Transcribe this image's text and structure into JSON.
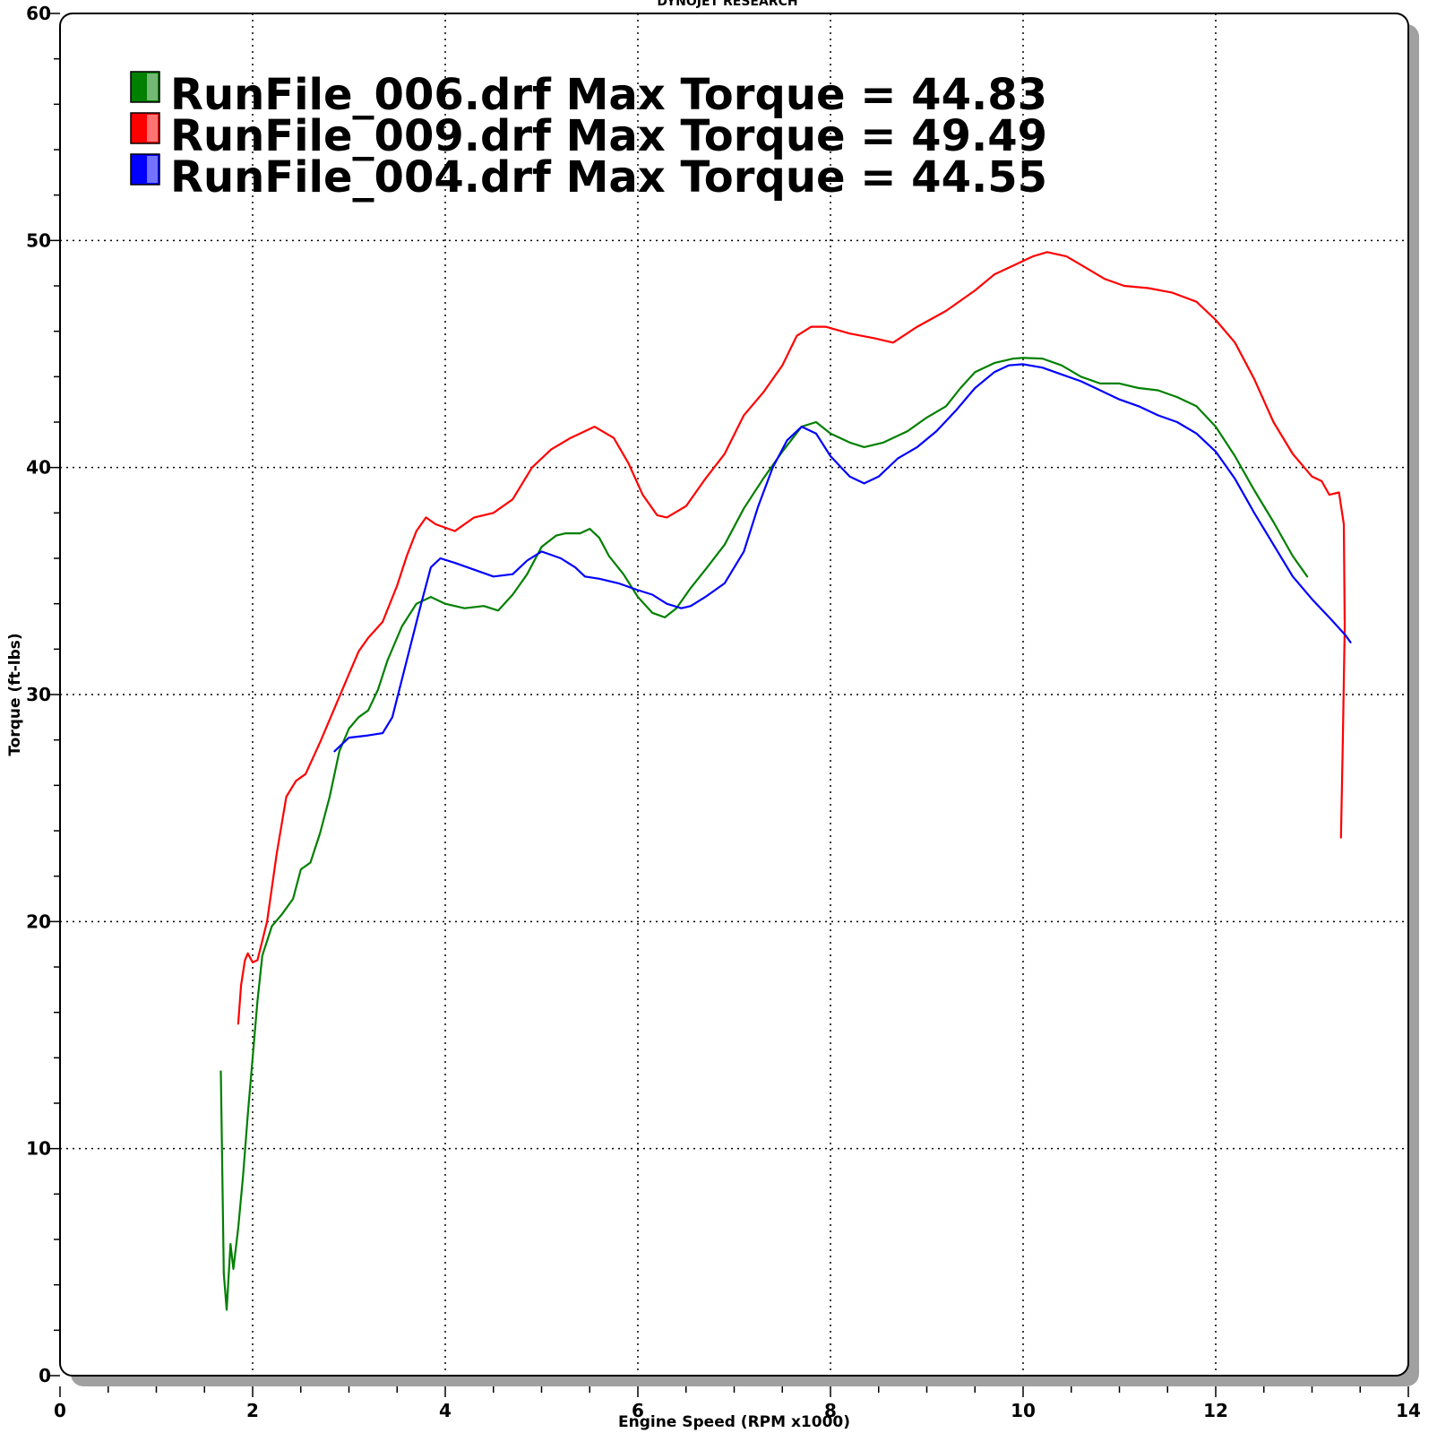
{
  "header": {
    "text": "DYNOJET RESEARCH"
  },
  "chart_data": {
    "type": "line",
    "title": "",
    "xlabel": "Engine Speed (RPM x1000)",
    "ylabel": "Torque (ft-lbs)",
    "xlim": [
      0,
      14
    ],
    "ylim": [
      0,
      60
    ],
    "x_ticks": [
      "0",
      "2",
      "4",
      "6",
      "8",
      "10",
      "12",
      "14"
    ],
    "y_ticks": [
      "0",
      "10",
      "20",
      "30",
      "40",
      "50",
      "60"
    ],
    "grid": true,
    "legend_position": "top-left",
    "series": [
      {
        "name": "RunFile_006.drf Max Torque = 44.83",
        "color": "#008000",
        "points": [
          [
            1.67,
            13.4
          ],
          [
            1.7,
            4.5
          ],
          [
            1.73,
            2.9
          ],
          [
            1.77,
            5.8
          ],
          [
            1.8,
            4.7
          ],
          [
            1.85,
            6.5
          ],
          [
            1.9,
            8.8
          ],
          [
            1.95,
            11.5
          ],
          [
            2.0,
            14.0
          ],
          [
            2.05,
            16.5
          ],
          [
            2.1,
            18.5
          ],
          [
            2.2,
            19.8
          ],
          [
            2.3,
            20.3
          ],
          [
            2.42,
            21.0
          ],
          [
            2.5,
            22.3
          ],
          [
            2.6,
            22.6
          ],
          [
            2.7,
            23.9
          ],
          [
            2.8,
            25.5
          ],
          [
            2.9,
            27.5
          ],
          [
            3.0,
            28.5
          ],
          [
            3.1,
            29.0
          ],
          [
            3.2,
            29.3
          ],
          [
            3.3,
            30.2
          ],
          [
            3.4,
            31.5
          ],
          [
            3.55,
            33.0
          ],
          [
            3.7,
            34.0
          ],
          [
            3.85,
            34.3
          ],
          [
            4.0,
            34.0
          ],
          [
            4.2,
            33.8
          ],
          [
            4.4,
            33.9
          ],
          [
            4.55,
            33.7
          ],
          [
            4.7,
            34.4
          ],
          [
            4.85,
            35.3
          ],
          [
            5.0,
            36.5
          ],
          [
            5.15,
            37.0
          ],
          [
            5.25,
            37.1
          ],
          [
            5.4,
            37.1
          ],
          [
            5.5,
            37.3
          ],
          [
            5.6,
            36.9
          ],
          [
            5.7,
            36.1
          ],
          [
            5.85,
            35.3
          ],
          [
            6.0,
            34.3
          ],
          [
            6.15,
            33.6
          ],
          [
            6.28,
            33.4
          ],
          [
            6.4,
            33.8
          ],
          [
            6.55,
            34.7
          ],
          [
            6.7,
            35.5
          ],
          [
            6.9,
            36.6
          ],
          [
            7.1,
            38.2
          ],
          [
            7.3,
            39.5
          ],
          [
            7.5,
            40.7
          ],
          [
            7.7,
            41.8
          ],
          [
            7.85,
            42.0
          ],
          [
            8.0,
            41.5
          ],
          [
            8.2,
            41.1
          ],
          [
            8.35,
            40.9
          ],
          [
            8.55,
            41.1
          ],
          [
            8.8,
            41.6
          ],
          [
            9.0,
            42.2
          ],
          [
            9.2,
            42.7
          ],
          [
            9.35,
            43.5
          ],
          [
            9.5,
            44.2
          ],
          [
            9.7,
            44.6
          ],
          [
            9.9,
            44.8
          ],
          [
            10.0,
            44.83
          ],
          [
            10.2,
            44.8
          ],
          [
            10.4,
            44.5
          ],
          [
            10.6,
            44.0
          ],
          [
            10.8,
            43.7
          ],
          [
            11.0,
            43.7
          ],
          [
            11.2,
            43.5
          ],
          [
            11.4,
            43.4
          ],
          [
            11.6,
            43.1
          ],
          [
            11.8,
            42.7
          ],
          [
            12.0,
            41.8
          ],
          [
            12.2,
            40.5
          ],
          [
            12.4,
            39.0
          ],
          [
            12.6,
            37.6
          ],
          [
            12.8,
            36.1
          ],
          [
            12.95,
            35.2
          ]
        ]
      },
      {
        "name": "RunFile_009.drf Max Torque = 49.49",
        "color": "#ff0000",
        "points": [
          [
            1.85,
            15.5
          ],
          [
            1.88,
            17.2
          ],
          [
            1.92,
            18.3
          ],
          [
            1.95,
            18.6
          ],
          [
            2.0,
            18.2
          ],
          [
            2.05,
            18.3
          ],
          [
            2.15,
            20.0
          ],
          [
            2.25,
            23.0
          ],
          [
            2.35,
            25.5
          ],
          [
            2.45,
            26.2
          ],
          [
            2.55,
            26.5
          ],
          [
            2.7,
            27.9
          ],
          [
            2.85,
            29.4
          ],
          [
            3.0,
            30.9
          ],
          [
            3.1,
            31.9
          ],
          [
            3.2,
            32.5
          ],
          [
            3.35,
            33.2
          ],
          [
            3.5,
            34.8
          ],
          [
            3.6,
            36.1
          ],
          [
            3.7,
            37.2
          ],
          [
            3.8,
            37.8
          ],
          [
            3.9,
            37.5
          ],
          [
            4.1,
            37.2
          ],
          [
            4.3,
            37.8
          ],
          [
            4.5,
            38.0
          ],
          [
            4.7,
            38.6
          ],
          [
            4.9,
            40.0
          ],
          [
            5.1,
            40.8
          ],
          [
            5.3,
            41.3
          ],
          [
            5.55,
            41.8
          ],
          [
            5.75,
            41.3
          ],
          [
            5.9,
            40.2
          ],
          [
            6.05,
            38.8
          ],
          [
            6.2,
            37.9
          ],
          [
            6.3,
            37.8
          ],
          [
            6.5,
            38.3
          ],
          [
            6.7,
            39.5
          ],
          [
            6.9,
            40.6
          ],
          [
            7.1,
            42.3
          ],
          [
            7.3,
            43.3
          ],
          [
            7.5,
            44.5
          ],
          [
            7.65,
            45.8
          ],
          [
            7.8,
            46.2
          ],
          [
            7.95,
            46.2
          ],
          [
            8.2,
            45.9
          ],
          [
            8.45,
            45.7
          ],
          [
            8.65,
            45.5
          ],
          [
            8.9,
            46.2
          ],
          [
            9.2,
            46.9
          ],
          [
            9.5,
            47.8
          ],
          [
            9.7,
            48.5
          ],
          [
            9.9,
            48.9
          ],
          [
            10.1,
            49.3
          ],
          [
            10.25,
            49.49
          ],
          [
            10.45,
            49.3
          ],
          [
            10.65,
            48.8
          ],
          [
            10.85,
            48.3
          ],
          [
            11.05,
            48.0
          ],
          [
            11.3,
            47.9
          ],
          [
            11.55,
            47.7
          ],
          [
            11.8,
            47.3
          ],
          [
            12.0,
            46.5
          ],
          [
            12.2,
            45.5
          ],
          [
            12.4,
            43.9
          ],
          [
            12.6,
            42.0
          ],
          [
            12.8,
            40.6
          ],
          [
            13.0,
            39.6
          ],
          [
            13.1,
            39.4
          ],
          [
            13.18,
            38.8
          ],
          [
            13.28,
            38.9
          ],
          [
            13.33,
            37.5
          ],
          [
            13.34,
            33.0
          ],
          [
            13.32,
            28.0
          ],
          [
            13.3,
            23.7
          ]
        ]
      },
      {
        "name": "RunFile_004.drf Max Torque = 44.55",
        "color": "#0000ff",
        "points": [
          [
            2.85,
            27.5
          ],
          [
            3.0,
            28.1
          ],
          [
            3.2,
            28.2
          ],
          [
            3.35,
            28.3
          ],
          [
            3.45,
            29.0
          ],
          [
            3.6,
            31.5
          ],
          [
            3.75,
            34.0
          ],
          [
            3.85,
            35.6
          ],
          [
            3.95,
            36.0
          ],
          [
            4.1,
            35.8
          ],
          [
            4.3,
            35.5
          ],
          [
            4.5,
            35.2
          ],
          [
            4.7,
            35.3
          ],
          [
            4.85,
            35.9
          ],
          [
            5.0,
            36.3
          ],
          [
            5.2,
            36.0
          ],
          [
            5.35,
            35.6
          ],
          [
            5.45,
            35.2
          ],
          [
            5.6,
            35.1
          ],
          [
            5.8,
            34.9
          ],
          [
            6.0,
            34.6
          ],
          [
            6.15,
            34.4
          ],
          [
            6.3,
            34.0
          ],
          [
            6.45,
            33.8
          ],
          [
            6.55,
            33.9
          ],
          [
            6.7,
            34.3
          ],
          [
            6.9,
            34.9
          ],
          [
            7.1,
            36.3
          ],
          [
            7.25,
            38.3
          ],
          [
            7.4,
            40.0
          ],
          [
            7.55,
            41.2
          ],
          [
            7.7,
            41.8
          ],
          [
            7.85,
            41.5
          ],
          [
            8.0,
            40.5
          ],
          [
            8.2,
            39.6
          ],
          [
            8.35,
            39.3
          ],
          [
            8.5,
            39.6
          ],
          [
            8.7,
            40.4
          ],
          [
            8.9,
            40.9
          ],
          [
            9.1,
            41.6
          ],
          [
            9.3,
            42.5
          ],
          [
            9.5,
            43.5
          ],
          [
            9.7,
            44.2
          ],
          [
            9.85,
            44.5
          ],
          [
            10.0,
            44.55
          ],
          [
            10.2,
            44.4
          ],
          [
            10.4,
            44.1
          ],
          [
            10.6,
            43.8
          ],
          [
            10.8,
            43.4
          ],
          [
            11.0,
            43.0
          ],
          [
            11.2,
            42.7
          ],
          [
            11.4,
            42.3
          ],
          [
            11.6,
            42.0
          ],
          [
            11.8,
            41.5
          ],
          [
            12.0,
            40.7
          ],
          [
            12.2,
            39.5
          ],
          [
            12.4,
            38.0
          ],
          [
            12.6,
            36.6
          ],
          [
            12.8,
            35.2
          ],
          [
            13.0,
            34.2
          ],
          [
            13.2,
            33.3
          ],
          [
            13.35,
            32.6
          ],
          [
            13.4,
            32.3
          ]
        ]
      }
    ]
  }
}
